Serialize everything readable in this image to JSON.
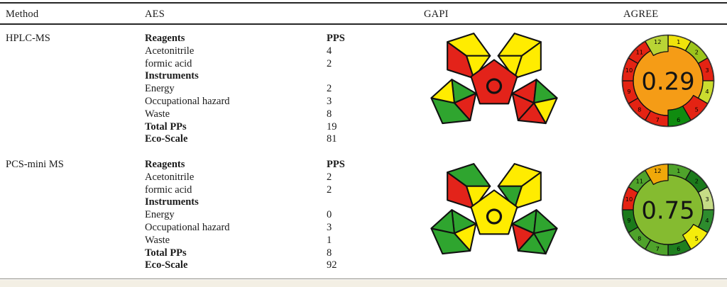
{
  "header": {
    "col_method": "Method",
    "col_aes": "AES",
    "col_gapi": "GAPI",
    "col_agree": "AGREE"
  },
  "gapi_palette": {
    "red": "#e3231a",
    "yellow": "#ffec00",
    "green": "#2fa52f"
  },
  "footer_bar_color": "#f3efe4",
  "rows": [
    {
      "method": "HPLC-MS",
      "aes_lines": [
        {
          "label": "Reagents",
          "value": "PPS",
          "bold": true,
          "value_bold": true
        },
        {
          "label": "Acetonitrile",
          "value": "4",
          "bold": false,
          "value_bold": false
        },
        {
          "label": "formic acid",
          "value": "2",
          "bold": false,
          "value_bold": false
        },
        {
          "label": "Instruments",
          "value": "",
          "bold": true,
          "value_bold": false
        },
        {
          "label": "Energy",
          "value": "2",
          "bold": false,
          "value_bold": false
        },
        {
          "label": "Occupational hazard",
          "value": "3",
          "bold": false,
          "value_bold": false
        },
        {
          "label": "Waste",
          "value": "8",
          "bold": false,
          "value_bold": false
        },
        {
          "label": "Total PPs",
          "value": "19",
          "bold": true,
          "value_bold": false
        },
        {
          "label": "Eco-Scale",
          "value": "81",
          "bold": true,
          "value_bold": false
        }
      ],
      "gapi": {
        "center": "red",
        "top_left": [
          "red",
          "yellow",
          "yellow"
        ],
        "top_right": [
          "yellow",
          "yellow",
          "yellow"
        ],
        "bottom_left": [
          "green",
          "red",
          "green",
          "yellow"
        ],
        "bottom_right": [
          "red",
          "green",
          "yellow",
          "red",
          "red"
        ]
      },
      "agree": {
        "score": "0.29",
        "center_color": "#f59c16",
        "segments": [
          {
            "label": "1",
            "color": "#f0e30b",
            "extended": false
          },
          {
            "label": "2",
            "color": "#9cc41c",
            "extended": false
          },
          {
            "label": "3",
            "color": "#e42313",
            "extended": false
          },
          {
            "label": "4",
            "color": "#cbdc2f",
            "extended": false
          },
          {
            "label": "5",
            "color": "#e42313",
            "extended": true
          },
          {
            "label": "6",
            "color": "#108c10",
            "extended": true
          },
          {
            "label": "7",
            "color": "#e42313",
            "extended": false
          },
          {
            "label": "8",
            "color": "#e42313",
            "extended": false
          },
          {
            "label": "9",
            "color": "#e42313",
            "extended": false
          },
          {
            "label": "10",
            "color": "#e42313",
            "extended": false
          },
          {
            "label": "11",
            "color": "#e42313",
            "extended": false
          },
          {
            "label": "12",
            "color": "#b9d435",
            "extended": true
          }
        ]
      }
    },
    {
      "method": "PCS-mini MS",
      "aes_lines": [
        {
          "label": "Reagents",
          "value": "PPS",
          "bold": true,
          "value_bold": true
        },
        {
          "label": "Acetonitrile",
          "value": "2",
          "bold": false,
          "value_bold": false
        },
        {
          "label": "formic acid",
          "value": "2",
          "bold": false,
          "value_bold": false
        },
        {
          "label": "Instruments",
          "value": "",
          "bold": true,
          "value_bold": false
        },
        {
          "label": "Energy",
          "value": "0",
          "bold": false,
          "value_bold": false
        },
        {
          "label": "Occupational hazard",
          "value": "3",
          "bold": false,
          "value_bold": false
        },
        {
          "label": "Waste",
          "value": "1",
          "bold": false,
          "value_bold": false
        },
        {
          "label": "Total PPs",
          "value": "8",
          "bold": true,
          "value_bold": false
        },
        {
          "label": "Eco-Scale",
          "value": "92",
          "bold": true,
          "value_bold": false
        }
      ],
      "gapi": {
        "center": "yellow",
        "top_left": [
          "red",
          "green",
          "yellow"
        ],
        "top_right": [
          "yellow",
          "yellow",
          "green"
        ],
        "bottom_left": [
          "green",
          "yellow",
          "green",
          "green"
        ],
        "bottom_right": [
          "green",
          "green",
          "green",
          "green",
          "red"
        ]
      },
      "agree": {
        "score": "0.75",
        "center_color": "#85bb30",
        "segments": [
          {
            "label": "1",
            "color": "#4fa32b",
            "extended": false
          },
          {
            "label": "2",
            "color": "#1b7a1b",
            "extended": false
          },
          {
            "label": "3",
            "color": "#c6dc86",
            "extended": false
          },
          {
            "label": "4",
            "color": "#2d8c2d",
            "extended": false
          },
          {
            "label": "5",
            "color": "#f5ed0b",
            "extended": true
          },
          {
            "label": "6",
            "color": "#1f7f1f",
            "extended": false
          },
          {
            "label": "7",
            "color": "#4fa32b",
            "extended": false
          },
          {
            "label": "8",
            "color": "#4fa32b",
            "extended": false
          },
          {
            "label": "9",
            "color": "#1b7a1b",
            "extended": false
          },
          {
            "label": "10",
            "color": "#e42313",
            "extended": false
          },
          {
            "label": "11",
            "color": "#4fa32b",
            "extended": false
          },
          {
            "label": "12",
            "color": "#f0a80a",
            "extended": true
          }
        ]
      }
    }
  ]
}
